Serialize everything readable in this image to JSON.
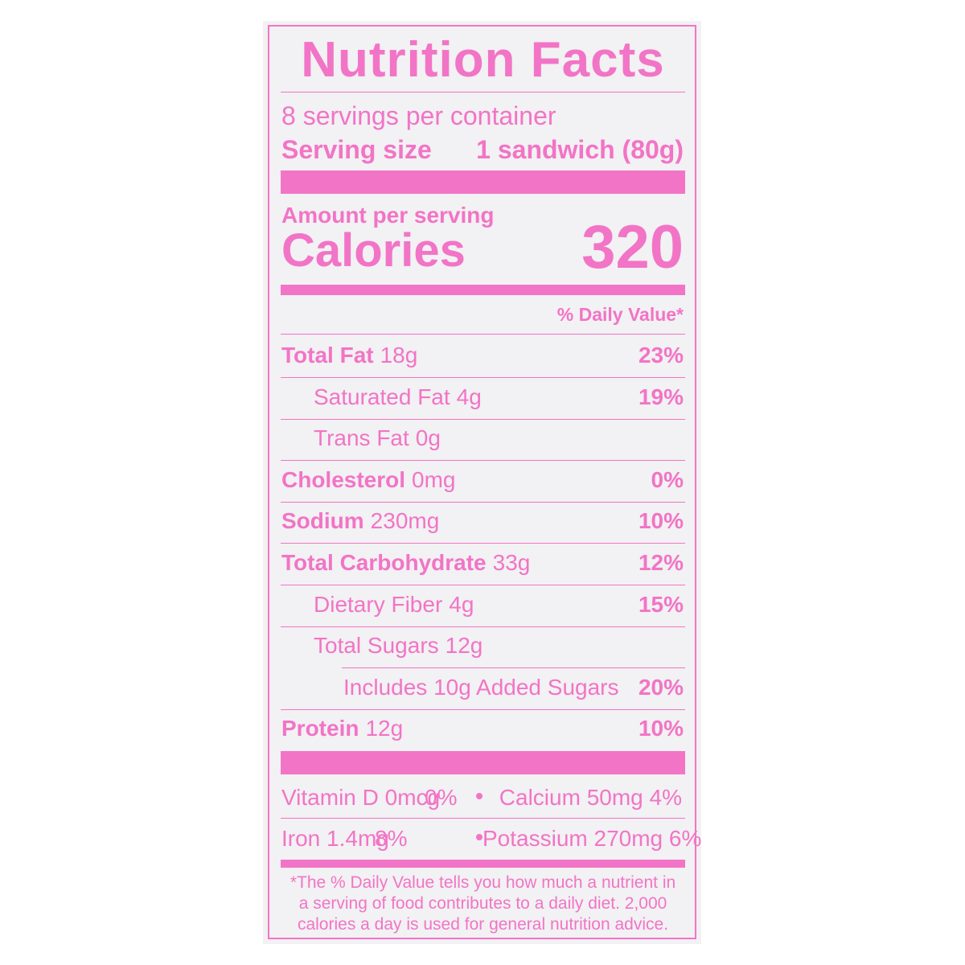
{
  "title": "Nutrition Facts",
  "servings_per_container": "8 servings per container",
  "serving_size_label": "Serving size",
  "serving_size_value": "1 sandwich (80g)",
  "amount_per_serving": "Amount per serving",
  "calories_label": "Calories",
  "calories_value": "320",
  "daily_value_header": "% Daily Value*",
  "nutrients": [
    {
      "name": "Total Fat",
      "amount": "18g",
      "dv": "23%"
    },
    {
      "name": "Saturated Fat",
      "amount": "4g",
      "dv": "19%"
    },
    {
      "name": "Trans Fat",
      "amount": "0g",
      "dv": ""
    },
    {
      "name": "Cholesterol",
      "amount": "0mg",
      "dv": "0%"
    },
    {
      "name": "Sodium",
      "amount": "230mg",
      "dv": "10%"
    },
    {
      "name": "Total Carbohydrate",
      "amount": "33g",
      "dv": "12%"
    },
    {
      "name": "Dietary Fiber",
      "amount": "4g",
      "dv": "15%"
    },
    {
      "name": "Total Sugars",
      "amount": "12g",
      "dv": ""
    },
    {
      "name": "Includes 10g Added Sugars",
      "amount": "",
      "dv": "20%"
    },
    {
      "name": "Protein",
      "amount": "12g",
      "dv": "10%"
    }
  ],
  "vitamins": {
    "vitamin_d": "Vitamin D 0mcg",
    "vitamin_d_dv": "0%",
    "calcium": "Calcium 50mg 4%",
    "iron": "Iron 1.4mg",
    "iron_dv": "8%",
    "potassium": "Potassium 270mg 6%"
  },
  "footnote": [
    "*The % Daily Value tells you how much a nutrient in",
    "a serving of food contributes to a daily diet. 2,000",
    "calories a day is used for general nutrition advice."
  ],
  "colors": {
    "ink": "#f274c6",
    "panel": "#f2f1f3",
    "background": "#ffffff"
  }
}
